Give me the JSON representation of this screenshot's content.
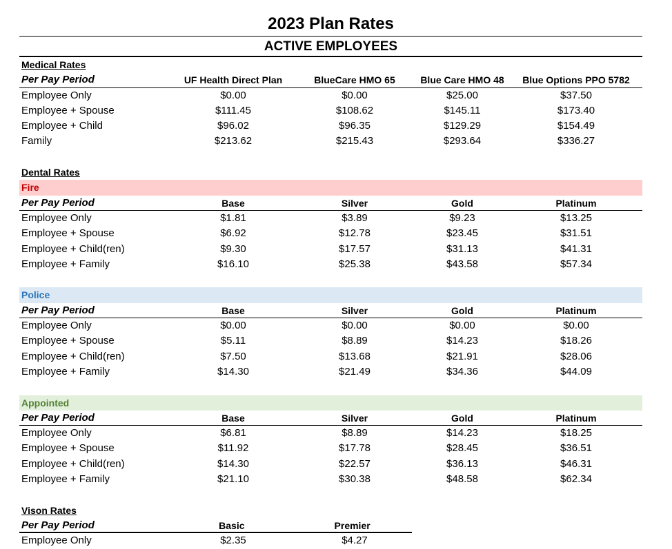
{
  "title": "2023 Plan Rates",
  "subtitle": "ACTIVE EMPLOYEES",
  "medical": {
    "label": "Medical Rates",
    "header": [
      "Per Pay Period",
      "UF Health Direct Plan",
      "BlueCare HMO 65",
      "Blue Care HMO 48",
      "Blue Options PPO 5782"
    ],
    "rows": [
      [
        "Employee Only",
        "$0.00",
        "$0.00",
        "$25.00",
        "$37.50"
      ],
      [
        "Employee + Spouse",
        "$111.45",
        "$108.62",
        "$145.11",
        "$173.40"
      ],
      [
        "Employee + Child",
        "$96.02",
        "$96.35",
        "$129.29",
        "$154.49"
      ],
      [
        "Family",
        "$213.62",
        "$215.43",
        "$293.64",
        "$336.27"
      ]
    ]
  },
  "dental": {
    "label": "Dental Rates",
    "groups": [
      {
        "name": "Fire",
        "header": [
          "Per Pay Period",
          "Base",
          "Silver",
          "Gold",
          "Platinum"
        ],
        "rows": [
          [
            "Employee Only",
            "$1.81",
            "$3.89",
            "$9.23",
            "$13.25"
          ],
          [
            "Employee + Spouse",
            "$6.92",
            "$12.78",
            "$23.45",
            "$31.51"
          ],
          [
            "Employee + Child(ren)",
            "$9.30",
            "$17.57",
            "$31.13",
            "$41.31"
          ],
          [
            "Employee + Family",
            "$16.10",
            "$25.38",
            "$43.58",
            "$57.34"
          ]
        ]
      },
      {
        "name": "Police",
        "header": [
          "Per Pay Period",
          "Base",
          "Silver",
          "Gold",
          "Platinum"
        ],
        "rows": [
          [
            "Employee Only",
            "$0.00",
            "$0.00",
            "$0.00",
            "$0.00"
          ],
          [
            "Employee + Spouse",
            "$5.11",
            "$8.89",
            "$14.23",
            "$18.26"
          ],
          [
            "Employee + Child(ren)",
            "$7.50",
            "$13.68",
            "$21.91",
            "$28.06"
          ],
          [
            "Employee + Family",
            "$14.30",
            "$21.49",
            "$34.36",
            "$44.09"
          ]
        ]
      },
      {
        "name": "Appointed",
        "header": [
          "Per Pay Period",
          "Base",
          "Silver",
          "Gold",
          "Platinum"
        ],
        "rows": [
          [
            "Employee Only",
            "$6.81",
            "$8.89",
            "$14.23",
            "$18.25"
          ],
          [
            "Employee + Spouse",
            "$11.92",
            "$17.78",
            "$28.45",
            "$36.51"
          ],
          [
            "Employee + Child(ren)",
            "$14.30",
            "$22.57",
            "$36.13",
            "$46.31"
          ],
          [
            "Employee + Family",
            "$21.10",
            "$30.38",
            "$48.58",
            "$62.34"
          ]
        ]
      }
    ]
  },
  "vision": {
    "label": "Vison Rates",
    "header": [
      "Per Pay Period",
      "Basic",
      "Premier"
    ],
    "rows": [
      [
        "Employee Only",
        "$2.35",
        "$4.27"
      ]
    ]
  }
}
